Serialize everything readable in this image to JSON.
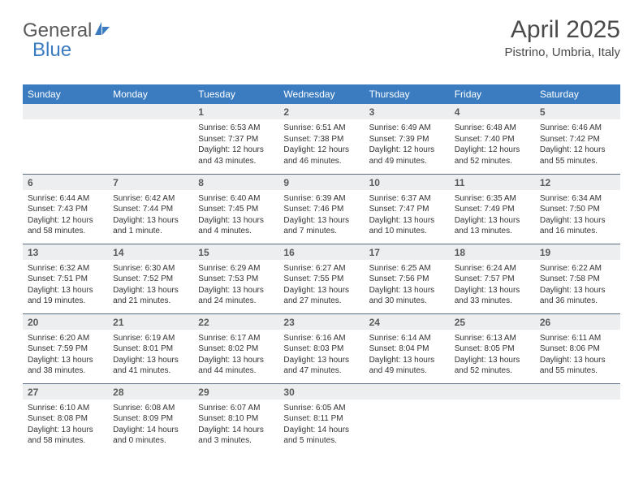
{
  "logo": {
    "text1": "General",
    "text2": "Blue"
  },
  "header": {
    "month_title": "April 2025",
    "location": "Pistrino, Umbria, Italy"
  },
  "colors": {
    "header_blue": "#3b7cc0",
    "daynum_bg": "#eceeef",
    "row_divider": "#5a6c7d",
    "text": "#333333",
    "title_text": "#4a4a4a"
  },
  "weekdays": [
    "Sunday",
    "Monday",
    "Tuesday",
    "Wednesday",
    "Thursday",
    "Friday",
    "Saturday"
  ],
  "weeks": [
    [
      {
        "empty": true
      },
      {
        "empty": true
      },
      {
        "n": "1",
        "sunrise": "6:53 AM",
        "sunset": "7:37 PM",
        "daylight": "12 hours and 43 minutes."
      },
      {
        "n": "2",
        "sunrise": "6:51 AM",
        "sunset": "7:38 PM",
        "daylight": "12 hours and 46 minutes."
      },
      {
        "n": "3",
        "sunrise": "6:49 AM",
        "sunset": "7:39 PM",
        "daylight": "12 hours and 49 minutes."
      },
      {
        "n": "4",
        "sunrise": "6:48 AM",
        "sunset": "7:40 PM",
        "daylight": "12 hours and 52 minutes."
      },
      {
        "n": "5",
        "sunrise": "6:46 AM",
        "sunset": "7:42 PM",
        "daylight": "12 hours and 55 minutes."
      }
    ],
    [
      {
        "n": "6",
        "sunrise": "6:44 AM",
        "sunset": "7:43 PM",
        "daylight": "12 hours and 58 minutes."
      },
      {
        "n": "7",
        "sunrise": "6:42 AM",
        "sunset": "7:44 PM",
        "daylight": "13 hours and 1 minute."
      },
      {
        "n": "8",
        "sunrise": "6:40 AM",
        "sunset": "7:45 PM",
        "daylight": "13 hours and 4 minutes."
      },
      {
        "n": "9",
        "sunrise": "6:39 AM",
        "sunset": "7:46 PM",
        "daylight": "13 hours and 7 minutes."
      },
      {
        "n": "10",
        "sunrise": "6:37 AM",
        "sunset": "7:47 PM",
        "daylight": "13 hours and 10 minutes."
      },
      {
        "n": "11",
        "sunrise": "6:35 AM",
        "sunset": "7:49 PM",
        "daylight": "13 hours and 13 minutes."
      },
      {
        "n": "12",
        "sunrise": "6:34 AM",
        "sunset": "7:50 PM",
        "daylight": "13 hours and 16 minutes."
      }
    ],
    [
      {
        "n": "13",
        "sunrise": "6:32 AM",
        "sunset": "7:51 PM",
        "daylight": "13 hours and 19 minutes."
      },
      {
        "n": "14",
        "sunrise": "6:30 AM",
        "sunset": "7:52 PM",
        "daylight": "13 hours and 21 minutes."
      },
      {
        "n": "15",
        "sunrise": "6:29 AM",
        "sunset": "7:53 PM",
        "daylight": "13 hours and 24 minutes."
      },
      {
        "n": "16",
        "sunrise": "6:27 AM",
        "sunset": "7:55 PM",
        "daylight": "13 hours and 27 minutes."
      },
      {
        "n": "17",
        "sunrise": "6:25 AM",
        "sunset": "7:56 PM",
        "daylight": "13 hours and 30 minutes."
      },
      {
        "n": "18",
        "sunrise": "6:24 AM",
        "sunset": "7:57 PM",
        "daylight": "13 hours and 33 minutes."
      },
      {
        "n": "19",
        "sunrise": "6:22 AM",
        "sunset": "7:58 PM",
        "daylight": "13 hours and 36 minutes."
      }
    ],
    [
      {
        "n": "20",
        "sunrise": "6:20 AM",
        "sunset": "7:59 PM",
        "daylight": "13 hours and 38 minutes."
      },
      {
        "n": "21",
        "sunrise": "6:19 AM",
        "sunset": "8:01 PM",
        "daylight": "13 hours and 41 minutes."
      },
      {
        "n": "22",
        "sunrise": "6:17 AM",
        "sunset": "8:02 PM",
        "daylight": "13 hours and 44 minutes."
      },
      {
        "n": "23",
        "sunrise": "6:16 AM",
        "sunset": "8:03 PM",
        "daylight": "13 hours and 47 minutes."
      },
      {
        "n": "24",
        "sunrise": "6:14 AM",
        "sunset": "8:04 PM",
        "daylight": "13 hours and 49 minutes."
      },
      {
        "n": "25",
        "sunrise": "6:13 AM",
        "sunset": "8:05 PM",
        "daylight": "13 hours and 52 minutes."
      },
      {
        "n": "26",
        "sunrise": "6:11 AM",
        "sunset": "8:06 PM",
        "daylight": "13 hours and 55 minutes."
      }
    ],
    [
      {
        "n": "27",
        "sunrise": "6:10 AM",
        "sunset": "8:08 PM",
        "daylight": "13 hours and 58 minutes."
      },
      {
        "n": "28",
        "sunrise": "6:08 AM",
        "sunset": "8:09 PM",
        "daylight": "14 hours and 0 minutes."
      },
      {
        "n": "29",
        "sunrise": "6:07 AM",
        "sunset": "8:10 PM",
        "daylight": "14 hours and 3 minutes."
      },
      {
        "n": "30",
        "sunrise": "6:05 AM",
        "sunset": "8:11 PM",
        "daylight": "14 hours and 5 minutes."
      },
      {
        "empty": true
      },
      {
        "empty": true
      },
      {
        "empty": true
      }
    ]
  ],
  "labels": {
    "sunrise": "Sunrise:",
    "sunset": "Sunset:",
    "daylight": "Daylight:"
  }
}
